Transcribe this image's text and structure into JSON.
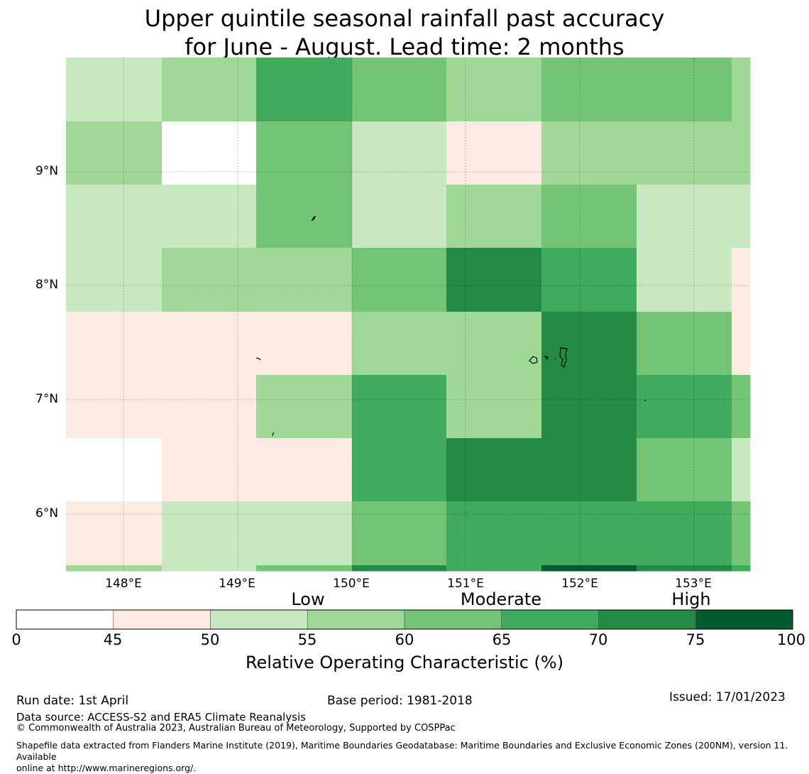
{
  "title": {
    "line1": "Upper quintile seasonal rainfall past accuracy",
    "line2": "for June - August. Lead time: 2 months"
  },
  "map": {
    "lat_labels": [
      "9°N",
      "8°N",
      "7°N",
      "6°N"
    ],
    "lon_labels": [
      "148°E",
      "149°E",
      "150°E",
      "151°E",
      "152°E",
      "153°E"
    ],
    "grid_rows": [
      [
        3,
        3,
        4,
        4,
        6,
        6,
        5,
        5,
        4,
        4,
        5,
        5,
        5,
        5,
        4
      ],
      [
        4,
        4,
        0,
        0,
        5,
        5,
        3,
        3,
        2,
        2,
        4,
        4,
        4,
        4,
        4
      ],
      [
        3,
        3,
        3,
        3,
        5,
        5,
        3,
        3,
        4,
        4,
        5,
        5,
        3,
        3,
        3
      ],
      [
        3,
        3,
        4,
        4,
        4,
        4,
        5,
        5,
        7,
        7,
        6,
        6,
        3,
        3,
        2
      ],
      [
        2,
        2,
        2,
        2,
        2,
        2,
        4,
        4,
        4,
        4,
        7,
        7,
        5,
        5,
        2
      ],
      [
        2,
        2,
        2,
        2,
        4,
        4,
        6,
        6,
        4,
        4,
        7,
        7,
        6,
        6,
        5
      ],
      [
        0,
        0,
        2,
        2,
        2,
        2,
        6,
        6,
        7,
        7,
        7,
        7,
        5,
        5,
        3
      ],
      [
        2,
        2,
        3,
        3,
        3,
        3,
        5,
        5,
        6,
        6,
        6,
        6,
        6,
        6,
        5
      ],
      [
        4,
        4,
        3,
        3,
        5,
        5,
        7,
        7,
        6,
        6,
        8,
        8,
        7,
        7,
        6
      ]
    ]
  },
  "legend": {
    "category_labels": [
      "Low",
      "Moderate",
      "High"
    ],
    "ticks": [
      "0",
      "45",
      "50",
      "55",
      "60",
      "65",
      "70",
      "75",
      "100"
    ],
    "title": "Relative Operating Characteristic (%)",
    "colors": [
      "#ffffff",
      "#fdebe1",
      "#c7e8c0",
      "#a0d898",
      "#73c475",
      "#40aa5d",
      "#238b45",
      "#005b2f"
    ]
  },
  "colors": {
    "class_0": "#ffffff",
    "class_2": "#fdebe1",
    "class_3": "#c7e8c0",
    "class_4": "#a0d898",
    "class_5": "#73c475",
    "class_6": "#40aa5d",
    "class_7": "#238b45",
    "class_8": "#005b2f"
  },
  "footer": {
    "run_date": "Run date: 1st April",
    "base_period": "Base period: 1981-2018",
    "issued": "Issued: 17/01/2023",
    "data_source": "Data source: ACCESS-S2 and ERA5 Climate Reanalysis",
    "copyright": "© Commonwealth of Australia 2023, Australian Bureau of Meteorology, Supported by COSPPac",
    "shapefile_line1": "Shapefile data extracted from Flanders Marine Institute (2019), Maritime Boundaries Geodatabase: Maritime Boundaries and Exclusive Economic Zones (200NM), version 11. Available",
    "shapefile_line2": "online at http://www.marineregions.org/."
  }
}
